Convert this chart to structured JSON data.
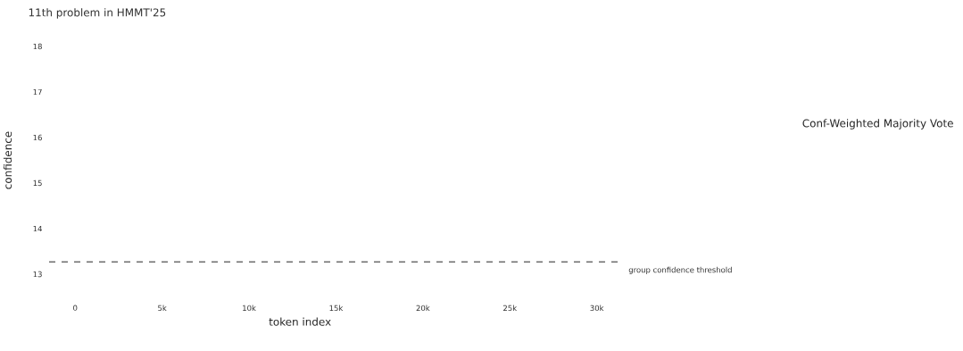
{
  "chart_data": {
    "type": "line",
    "title": "11th problem in HMMT'25",
    "xlabel": "token index",
    "ylabel": "confidence",
    "xlim": [
      -1500,
      31300
    ],
    "ylim": [
      13,
      18
    ],
    "xticks": [
      0,
      {
        "value": 5000,
        "label": "5k"
      },
      {
        "value": 10000,
        "label": "10k"
      },
      {
        "value": 15000,
        "label": "15k"
      },
      {
        "value": 20000,
        "label": "20k"
      },
      {
        "value": 25000,
        "label": "25k"
      },
      {
        "value": 30000,
        "label": "30k"
      }
    ],
    "yticks": [
      13,
      14,
      15,
      16,
      17,
      18
    ],
    "grid": false,
    "ref_lines": [
      {
        "axis": "y",
        "value": 13.27,
        "label": "group confidence threshold",
        "color": "#6e6e6e",
        "line_style": "dashed"
      }
    ],
    "annotations": [
      "Conf-Weighted Majority Vote"
    ]
  }
}
